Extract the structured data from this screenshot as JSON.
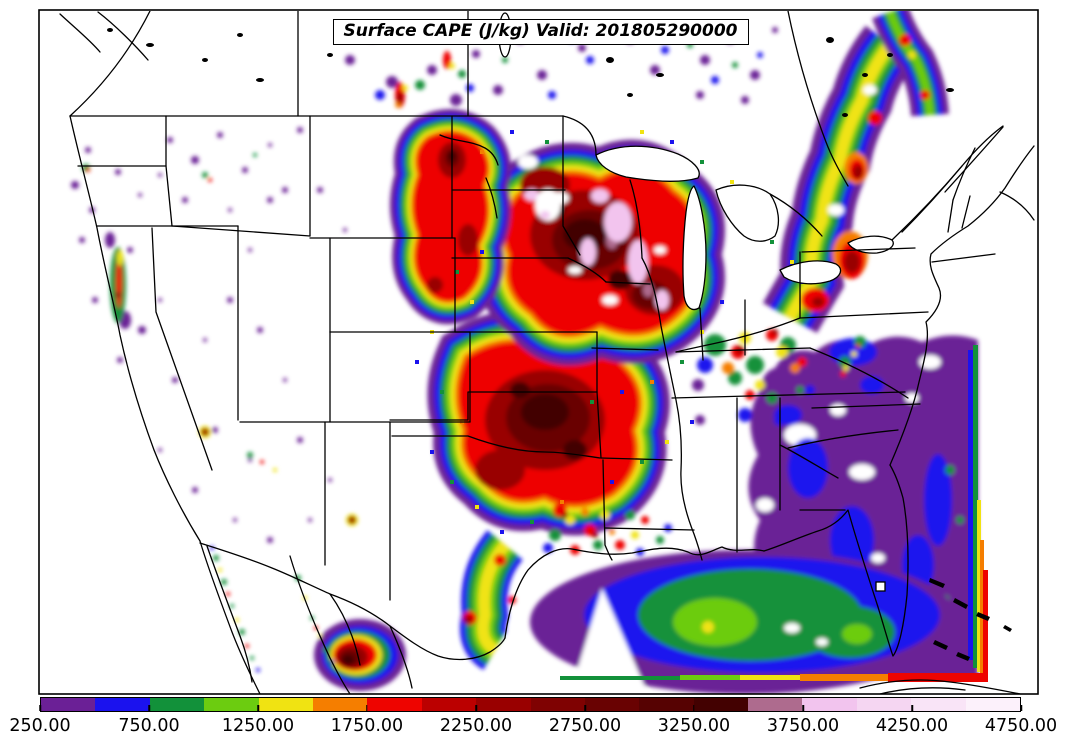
{
  "title": {
    "text": "Surface CAPE (J/kg) Valid: 201805290000"
  },
  "colorbar": {
    "min": 250,
    "max": 4750,
    "step": 250,
    "levels": [
      250,
      500,
      750,
      1000,
      1250,
      1500,
      1750,
      2000,
      2250,
      2500,
      2750,
      3000,
      3250,
      3500,
      3750,
      4000,
      4250,
      4500,
      4750
    ],
    "colors": [
      "#6B2096",
      "#1B12EE",
      "#12913A",
      "#6CCC10",
      "#F0E312",
      "#F57E00",
      "#EE0400",
      "#BB0000",
      "#990000",
      "#7F0202",
      "#690202",
      "#560202",
      "#430101",
      "#AE6B8E",
      "#F2C4EE",
      "#F5D6F2",
      "#F9E4F7",
      "#FCF1FB"
    ],
    "tick_labels": [
      "250.00",
      "750.00",
      "1250.00",
      "1750.00",
      "2250.00",
      "2750.00",
      "3250.00",
      "3750.00",
      "4250.00",
      "4750.00"
    ]
  },
  "chart_data": {
    "type": "heatmap",
    "title": "Surface CAPE (J/kg) Valid: 201805290000",
    "field": "Surface CAPE",
    "units": "J/kg",
    "valid_time": "201805290000",
    "region": "Continental United States",
    "levels": [
      250,
      500,
      750,
      1000,
      1250,
      1500,
      1750,
      2000,
      2250,
      2500,
      2750,
      3000,
      3250,
      3500,
      3750,
      4000,
      4250,
      4500,
      4750
    ],
    "palette": [
      "#6B2096",
      "#1B12EE",
      "#12913A",
      "#6CCC10",
      "#F0E312",
      "#F57E00",
      "#EE0400",
      "#BB0000",
      "#990000",
      "#7F0202",
      "#690202",
      "#560202",
      "#430101",
      "#AE6B8E",
      "#F2C4EE",
      "#F5D6F2",
      "#F9E4F7",
      "#FCF1FB"
    ],
    "colorbar_ticks": [
      "250.00",
      "750.00",
      "1250.00",
      "1750.00",
      "2250.00",
      "2750.00",
      "3250.00",
      "3750.00",
      "4250.00",
      "4750.00"
    ],
    "legend_position": "bottom"
  }
}
